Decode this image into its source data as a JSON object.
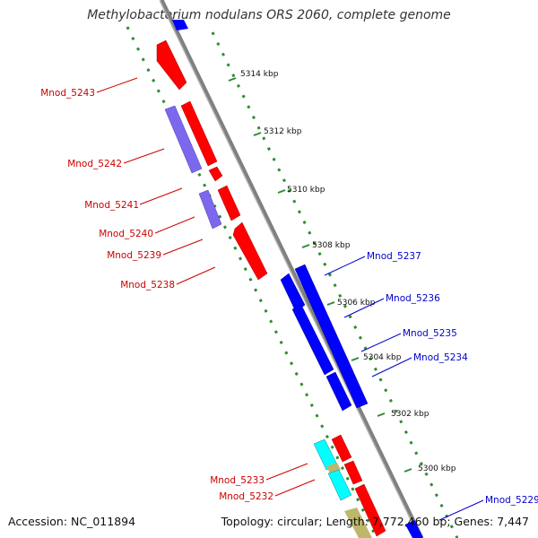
{
  "title": "Methylobacterium nodulans ORS 2060, complete genome",
  "accession": "Accession: NC_011894",
  "summary": "Topology: circular; Length: 7,772,460 bp; Genes: 7,447",
  "colors": {
    "forward_gene": "#ff0000",
    "reverse_gene": "#0000ff",
    "forward_label": "#cc0000",
    "reverse_label": "#0000cc",
    "rna_purple": "#7b68ee",
    "cyan_feature": "#00ffff",
    "tan_feature": "#bdb76b",
    "axis": "#888888",
    "dotted_track": "#2e8b2e"
  },
  "icons": [],
  "ticks": [
    "5314 kbp",
    "5312 kbp",
    "5310 kbp",
    "5308 kbp",
    "5306 kbp",
    "5304 kbp",
    "5302 kbp",
    "5300 kbp"
  ],
  "left_labels": [
    "Mnod_5243",
    "Mnod_5242",
    "Mnod_5241",
    "Mnod_5240",
    "Mnod_5239",
    "Mnod_5238",
    "Mnod_5233",
    "Mnod_5232"
  ],
  "right_labels": [
    "Mnod_5237",
    "Mnod_5236",
    "Mnod_5235",
    "Mnod_5234",
    "Mnod_5229"
  ]
}
